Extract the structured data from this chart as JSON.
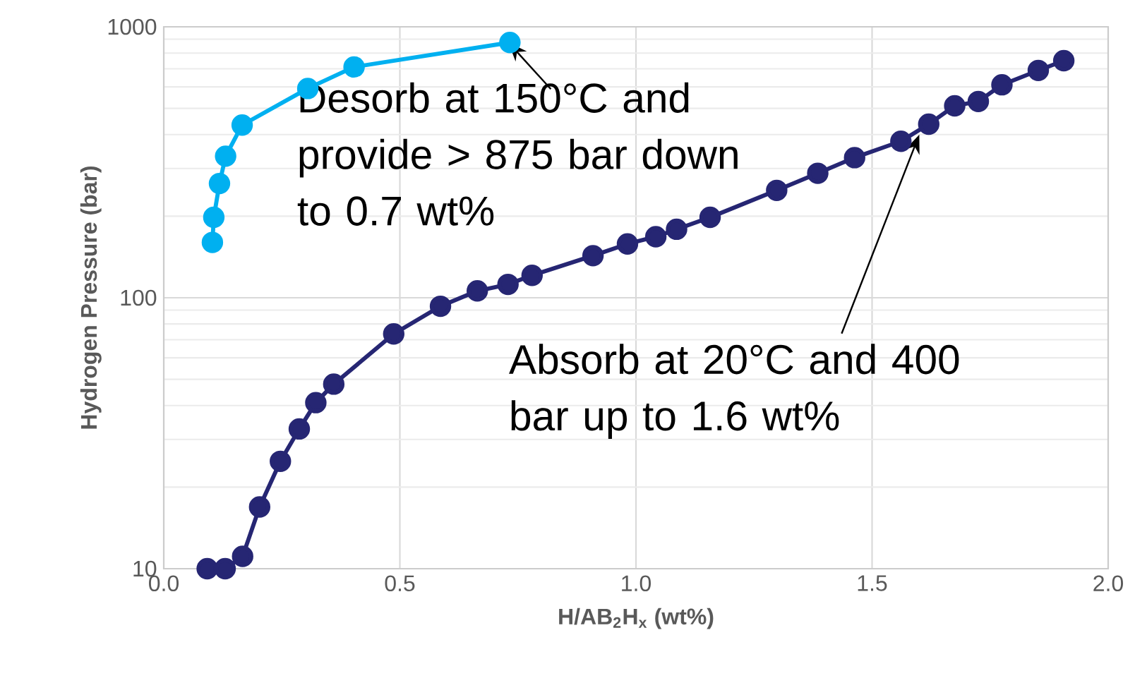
{
  "chart_data": {
    "type": "line",
    "xlabel": "**H/AB$_{2}$H$_{x}$ (wt%)**",
    "ylabel": "**Hydrogen Pressure (bar)**",
    "log": "y",
    "grid": true,
    "marker": "circle",
    "xlim": [
      0,
      2
    ],
    "xticks": [
      {
        "value": 0,
        "label": "0.0"
      },
      0.5,
      {
        "value": 1,
        "label": "1.0"
      },
      1.5,
      {
        "value": 2,
        "label": "2.0"
      }
    ],
    "ylim": [
      10,
      1000
    ],
    "yticks": [
      10,
      100,
      1000
    ],
    "series": [
      {
        "color": "#00b0f0",
        "x": [
          0.103,
          0.106,
          0.118,
          0.131,
          0.166,
          0.305,
          0.403,
          0.733
        ],
        "values": [
          160,
          198,
          264,
          333,
          434,
          592,
          711,
          875
        ]
      },
      {
        "color": "#262673",
        "x": [
          0.092,
          0.13,
          0.167,
          0.203,
          0.247,
          0.287,
          0.322,
          0.36,
          0.487,
          0.586,
          0.664,
          0.729,
          0.78,
          0.909,
          0.982,
          1.042,
          1.086,
          1.157,
          1.298,
          1.385,
          1.463,
          1.561,
          1.62,
          1.675,
          1.725,
          1.775,
          1.852,
          1.906
        ],
        "values": [
          10,
          10,
          11.1,
          16.9,
          24.9,
          32.8,
          41,
          48,
          73.5,
          93,
          106,
          112,
          121,
          143,
          158,
          168,
          179,
          198,
          249,
          288,
          329,
          378,
          437,
          511,
          530,
          611,
          690,
          750
        ]
      }
    ],
    "annotations": [
      {
        "text": "Desorb at 150°C and provide > 875 bar down to 0.7 wt%",
        "x": 0.73,
        "y": 875
      },
      {
        "text": "Absorb at 20°C and 400 bar up to 1.6 wt%",
        "x": 1.6,
        "y": 400
      }
    ]
  }
}
